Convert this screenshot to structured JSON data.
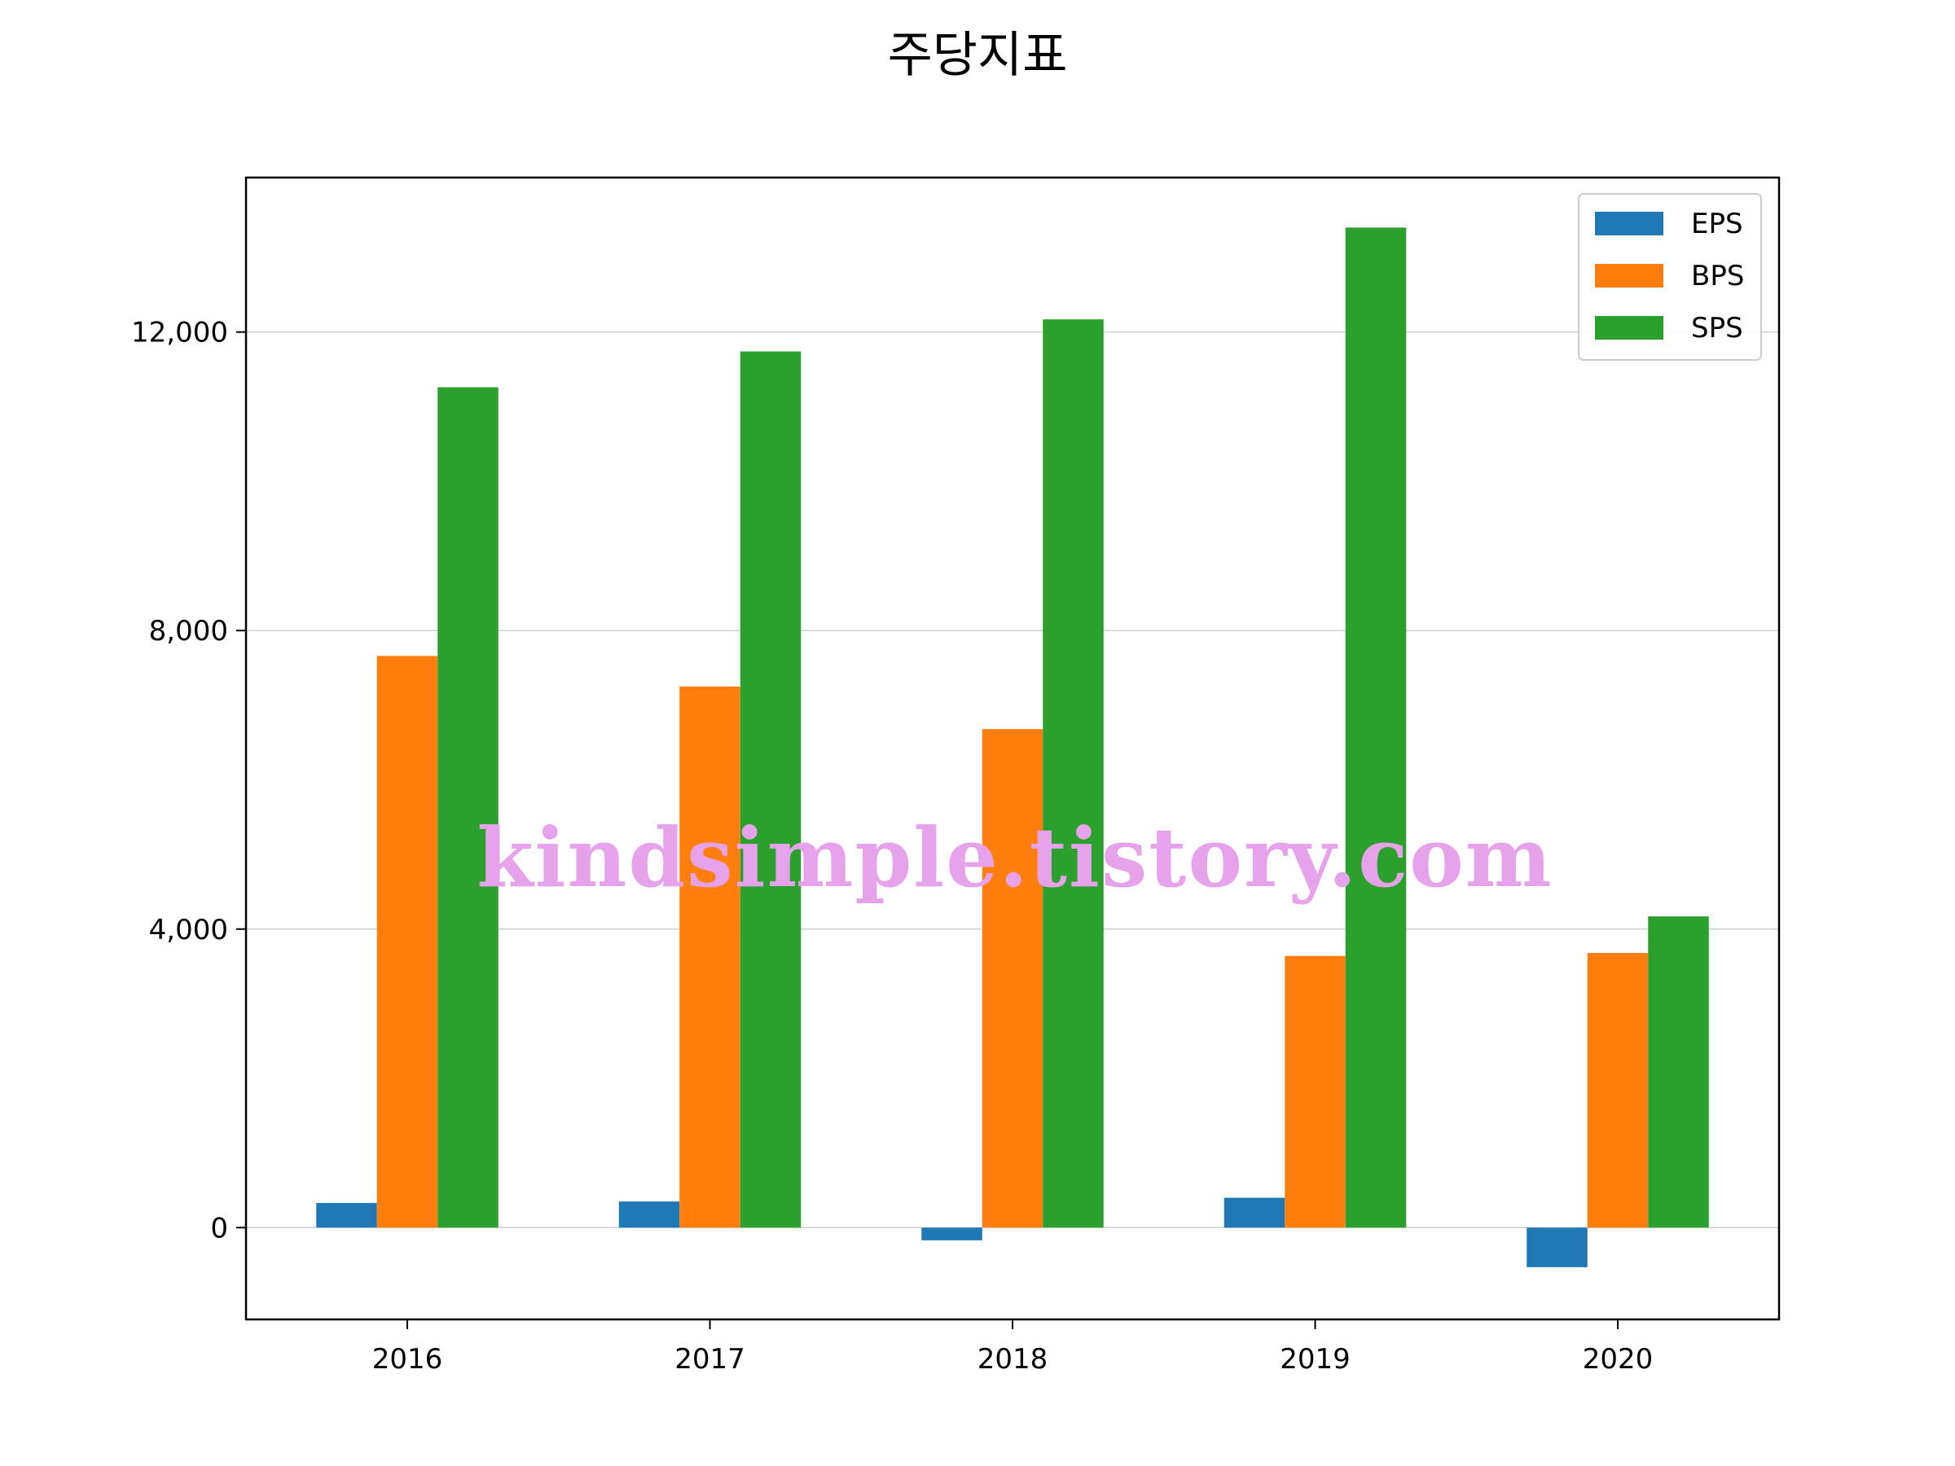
{
  "chart_data": {
    "type": "bar",
    "title": "주당지표",
    "categories": [
      "2016",
      "2017",
      "2018",
      "2019",
      "2020"
    ],
    "series": [
      {
        "name": "EPS",
        "color": "#1f77b4",
        "values": [
          330,
          350,
          -170,
          400,
          -530
        ]
      },
      {
        "name": "BPS",
        "color": "#ff7f0e",
        "values": [
          7660,
          7250,
          6680,
          3640,
          3680
        ]
      },
      {
        "name": "SPS",
        "color": "#2ca02c",
        "values": [
          11260,
          11740,
          12170,
          13400,
          4170
        ]
      }
    ],
    "ylim": [
      -1230,
      14070
    ],
    "yticks": [
      0,
      4000,
      8000,
      12000
    ],
    "ytick_labels": [
      "0",
      "4,000",
      "8,000",
      "12,000"
    ],
    "grid": "horizontal",
    "legend_position": "top-right"
  },
  "watermark": "kindsimple.tistory.com"
}
